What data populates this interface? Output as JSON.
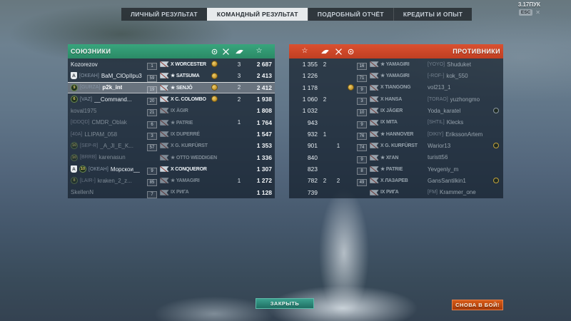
{
  "hud": {
    "version_text": "3.17ПУК",
    "esc_label": "ESC",
    "close_symbol": "✕"
  },
  "tabs": [
    {
      "label": "ЛИЧНЫЙ РЕЗУЛЬТАТ",
      "active": false
    },
    {
      "label": "КОМАНДНЫЙ РЕЗУЛЬТАТ",
      "active": true
    },
    {
      "label": "ПОДРОБНЫЙ ОТЧЁТ",
      "active": false
    },
    {
      "label": "КРЕДИТЫ И ОПЫТ",
      "active": false
    }
  ],
  "buttons": {
    "close_label": "ЗАКРЫТЬ",
    "battle_label": "СНОВА В БОЙ!"
  },
  "colors": {
    "ally_header": "#2f9c74",
    "enemy_header": "#d74b2b",
    "close_button": "#2f9188",
    "battle_button": "#c64511",
    "selected_row": "rgba(235,240,244,0.32)",
    "medal_gold": "#d0a02f"
  },
  "column_icons": [
    "medal-icon",
    "frags-icon",
    "planes-icon",
    "xp-star-icon"
  ],
  "allies": {
    "title": "СОЮЗНИКИ",
    "rows": [
      {
        "division": "",
        "emblem": "",
        "clan": "",
        "name": "Kozorezov",
        "lvl": "1",
        "tier": "X",
        "ship": "WORCESTER",
        "medal": true,
        "frags": "",
        "planes": "3",
        "xp": "2 687",
        "dead": false,
        "selected": false
      },
      {
        "division": "A",
        "emblem": "",
        "clan": "[ОКЕАН]",
        "name": "BaM_ClOpIIpu3",
        "lvl": "59",
        "tier": "★",
        "ship": "SATSUMA",
        "medal": true,
        "frags": "",
        "planes": "3",
        "xp": "2 413",
        "dead": false,
        "selected": false
      },
      {
        "division": "",
        "emblem": "9",
        "clan": "[GURZA]",
        "name": "p2k_int",
        "lvl": "19",
        "tier": "★",
        "ship": "SENJŌ",
        "medal": true,
        "frags": "",
        "planes": "2",
        "xp": "2 412",
        "dead": false,
        "selected": true
      },
      {
        "division": "",
        "emblem": "6",
        "clan": "[VAZ]",
        "name": "__Command...",
        "lvl": "20",
        "tier": "X",
        "ship": "C. COLOMBO",
        "medal": true,
        "frags": "",
        "planes": "2",
        "xp": "1 938",
        "dead": false,
        "selected": false
      },
      {
        "division": "",
        "emblem": "",
        "clan": "",
        "name": "koval1975",
        "lvl": "21",
        "tier": "IX",
        "ship": "ÄGIR",
        "medal": false,
        "frags": "",
        "planes": "",
        "xp": "1 808",
        "dead": true,
        "selected": false
      },
      {
        "division": "",
        "emblem": "",
        "clan": "[IDDQD]",
        "name": "CMDR_Oblak",
        "lvl": "6",
        "tier": "★",
        "ship": "PATRIE",
        "medal": false,
        "frags": "",
        "planes": "1",
        "xp": "1 764",
        "dead": true,
        "selected": false
      },
      {
        "division": "",
        "emblem": "",
        "clan": "[40A]",
        "name": "LLIPAM_058",
        "lvl": "3",
        "tier": "IX",
        "ship": "DUPERRÉ",
        "medal": false,
        "frags": "",
        "planes": "",
        "xp": "1 547",
        "dead": true,
        "selected": false
      },
      {
        "division": "",
        "emblem": "10",
        "clan": "[SEP-R]",
        "name": "_A_JI_E_K...",
        "lvl": "57",
        "tier": "X",
        "ship": "G. KURFÜRST",
        "medal": false,
        "frags": "",
        "planes": "",
        "xp": "1 353",
        "dead": true,
        "selected": false
      },
      {
        "division": "",
        "emblem": "10",
        "clan": "[BRRB]",
        "name": "karenasun",
        "lvl": "",
        "tier": "★",
        "ship": "OTTO WEDDIGEN",
        "medal": false,
        "frags": "",
        "planes": "",
        "xp": "1 336",
        "dead": true,
        "selected": false
      },
      {
        "division": "A",
        "emblem": "10",
        "clan": "[ОКЕАН]",
        "name": "Морскои__",
        "lvl": "9",
        "tier": "X",
        "ship": "CONQUEROR",
        "medal": false,
        "frags": "",
        "planes": "",
        "xp": "1 307",
        "dead": false,
        "selected": false
      },
      {
        "division": "",
        "emblem": "8",
        "clan": "[LAIR-]",
        "name": "kraken_2_z...",
        "lvl": "85",
        "tier": "★",
        "ship": "YAMAGIRI",
        "medal": false,
        "frags": "",
        "planes": "1",
        "xp": "1 272",
        "dead": true,
        "selected": false
      },
      {
        "division": "",
        "emblem": "",
        "clan": "",
        "name": "SkellenN",
        "lvl": "7",
        "tier": "IX",
        "ship": "РИГА",
        "medal": false,
        "frags": "",
        "planes": "",
        "xp": "1 128",
        "dead": true,
        "selected": false
      }
    ]
  },
  "enemies": {
    "title": "ПРОТИВНИКИ",
    "rows": [
      {
        "lvl": "16",
        "tier": "★",
        "ship": "YAMAGIRI",
        "clan": "[YOYO]",
        "name": "Shuduket",
        "medal": false,
        "frags": "",
        "planes": "2",
        "xp": "1 355",
        "badge": "",
        "dead": true
      },
      {
        "lvl": "71",
        "tier": "★",
        "ship": "YAMAGIRI",
        "clan": "[-ROF-]",
        "name": "kok_550",
        "medal": false,
        "frags": "",
        "planes": "",
        "xp": "1 226",
        "badge": "",
        "dead": true
      },
      {
        "lvl": "9",
        "tier": "X",
        "ship": "TIANGONG",
        "clan": "",
        "name": "vol213_1",
        "medal": true,
        "frags": "",
        "planes": "",
        "xp": "1 178",
        "badge": "",
        "dead": true
      },
      {
        "lvl": "3",
        "tier": "X",
        "ship": "HANSA",
        "clan": "[TORAO]",
        "name": "yuzhongmo",
        "medal": false,
        "frags": "",
        "planes": "2",
        "xp": "1 060",
        "badge": "",
        "dead": true
      },
      {
        "lvl": "10",
        "tier": "IX",
        "ship": "JÄGER",
        "clan": "",
        "name": "Yoda_karatel",
        "medal": false,
        "frags": "",
        "planes": "",
        "xp": "1 032",
        "badge": "grey",
        "dead": true
      },
      {
        "lvl": "9",
        "tier": "IX",
        "ship": "MITA",
        "clan": "[SHTIL]",
        "name": "Klecks",
        "medal": false,
        "frags": "",
        "planes": "",
        "xp": "943",
        "badge": "",
        "dead": true
      },
      {
        "lvl": "76",
        "tier": "★",
        "ship": "HANNOVER",
        "clan": "[DIKIY]",
        "name": "ErikssonArtem",
        "medal": false,
        "frags": "",
        "planes": "1",
        "xp": "932",
        "badge": "",
        "dead": true
      },
      {
        "lvl": "74",
        "tier": "X",
        "ship": "G. KURFÜRST",
        "clan": "",
        "name": "Warior13",
        "medal": false,
        "frags": "1",
        "planes": "",
        "xp": "901",
        "badge": "gold",
        "dead": true
      },
      {
        "lvl": "9",
        "tier": "★",
        "ship": "XI'AN",
        "clan": "",
        "name": "turistt56",
        "medal": false,
        "frags": "",
        "planes": "",
        "xp": "840",
        "badge": "",
        "dead": true
      },
      {
        "lvl": "8",
        "tier": "★",
        "ship": "PATRIE",
        "clan": "",
        "name": "Yevgeniy_m",
        "medal": false,
        "frags": "",
        "planes": "",
        "xp": "823",
        "badge": "",
        "dead": true
      },
      {
        "lvl": "49",
        "tier": "X",
        "ship": "ЛАЗАРЕВ",
        "clan": "",
        "name": "GansSantilkin1",
        "medal": false,
        "frags": "2",
        "planes": "2",
        "xp": "782",
        "badge": "gold",
        "dead": true
      },
      {
        "lvl": "",
        "tier": "IX",
        "ship": "РИГА",
        "clan": "[FM]",
        "name": "Krammer_one",
        "medal": false,
        "frags": "",
        "planes": "",
        "xp": "739",
        "badge": "",
        "dead": true
      }
    ]
  }
}
